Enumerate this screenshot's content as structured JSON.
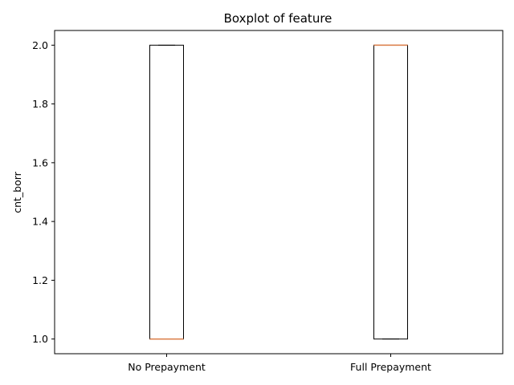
{
  "chart_data": {
    "type": "boxplot",
    "title": "Boxplot of feature",
    "xlabel": "",
    "ylabel": "cnt_borr",
    "categories": [
      "No Prepayment",
      "Full Prepayment"
    ],
    "boxes": [
      {
        "category": "No Prepayment",
        "whislo": 1.0,
        "q1": 1.0,
        "median": 1.0,
        "q3": 2.0,
        "whishi": 2.0
      },
      {
        "category": "Full Prepayment",
        "whislo": 1.0,
        "q1": 1.0,
        "median": 2.0,
        "q3": 2.0,
        "whishi": 2.0
      }
    ],
    "yticks": [
      1.0,
      1.2,
      1.4,
      1.6,
      1.8,
      2.0
    ],
    "ytick_labels": [
      "1.0",
      "1.2",
      "1.4",
      "1.6",
      "1.8",
      "2.0"
    ],
    "ylim": [
      0.95,
      2.05
    ],
    "grid": false,
    "colors": {
      "box": "#000000",
      "median": "#dd8452",
      "axes": "#000000"
    }
  }
}
